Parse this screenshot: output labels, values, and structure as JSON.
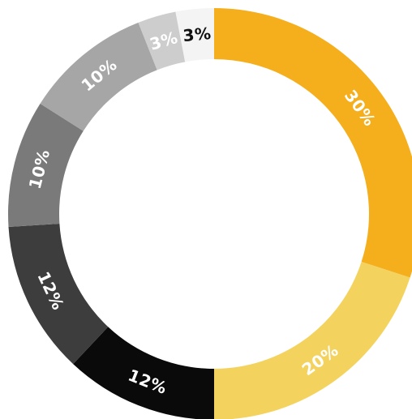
{
  "chart_data": {
    "type": "pie",
    "variant": "donut",
    "direction": "clockwise from top",
    "slices": [
      {
        "label": "30%",
        "value": 30,
        "color": "#F5AE1C",
        "label_color": "#ffffff"
      },
      {
        "label": "20%",
        "value": 20,
        "color": "#F3D35E",
        "label_color": "#ffffff"
      },
      {
        "label": "12%",
        "value": 12,
        "color": "#0a0a0a",
        "label_color": "#ffffff"
      },
      {
        "label": "12%",
        "value": 12,
        "color": "#3d3d3d",
        "label_color": "#ffffff"
      },
      {
        "label": "10%",
        "value": 10,
        "color": "#7a7a7a",
        "label_color": "#ffffff"
      },
      {
        "label": "10%",
        "value": 10,
        "color": "#a6a6a6",
        "label_color": "#ffffff"
      },
      {
        "label": "3%",
        "value": 3,
        "color": "#cdcdcd",
        "label_color": "#ffffff"
      },
      {
        "label": "3%",
        "value": 3,
        "color": "#f4f4f4",
        "label_color": "#111111"
      }
    ]
  }
}
